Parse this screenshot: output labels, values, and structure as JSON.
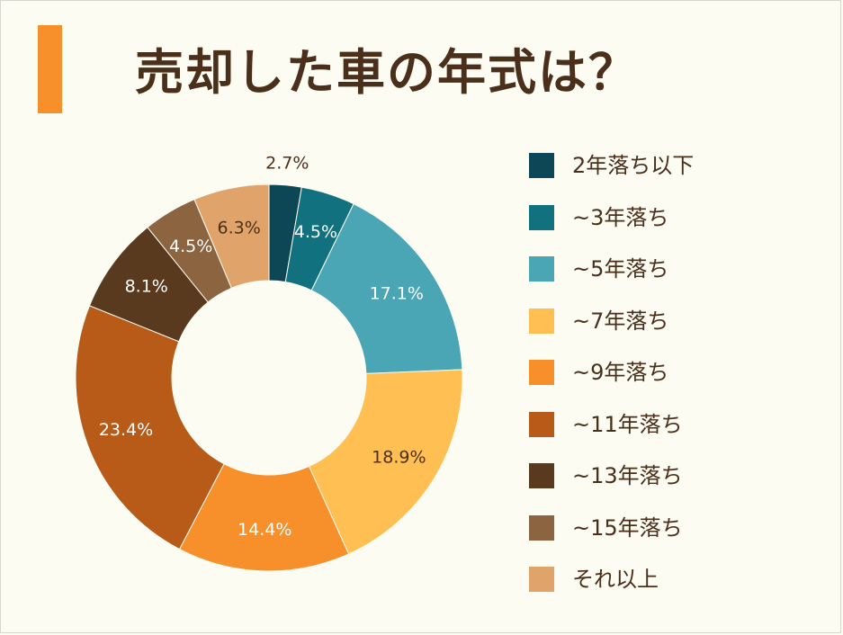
{
  "title": "売却した車の年式は？",
  "colors": {
    "background": "#fcfcf3",
    "accent_bar": "#f7902a",
    "text": "#4a2f1a"
  },
  "chart_data": {
    "type": "pie",
    "donut": true,
    "title": "売却した車の年式は？",
    "legend_position": "right",
    "categories": [
      "2年落ち以下",
      "~3年落ち",
      "~5年落ち",
      "~7年落ち",
      "~9年落ち",
      "~11年落ち",
      "~13年落ち",
      "~15年落ち",
      "それ以上"
    ],
    "values": [
      2.7,
      4.5,
      17.1,
      18.9,
      14.4,
      23.4,
      8.1,
      4.5,
      6.3
    ],
    "labels": [
      "2.7%",
      "4.5%",
      "17.1%",
      "18.9%",
      "14.4%",
      "23.4%",
      "8.1%",
      "4.5%",
      "6.3%"
    ],
    "colors": [
      "#0d4654",
      "#12717f",
      "#4aa6b4",
      "#ffbf52",
      "#f7902a",
      "#b85b19",
      "#5a3a1e",
      "#8c6440",
      "#e0a46a"
    ],
    "label_colors": [
      "#4a2f1a",
      "#ffffff",
      "#ffffff",
      "#4a2f1a",
      "#ffffff",
      "#ffffff",
      "#ffffff",
      "#ffffff",
      "#4a2f1a"
    ]
  }
}
